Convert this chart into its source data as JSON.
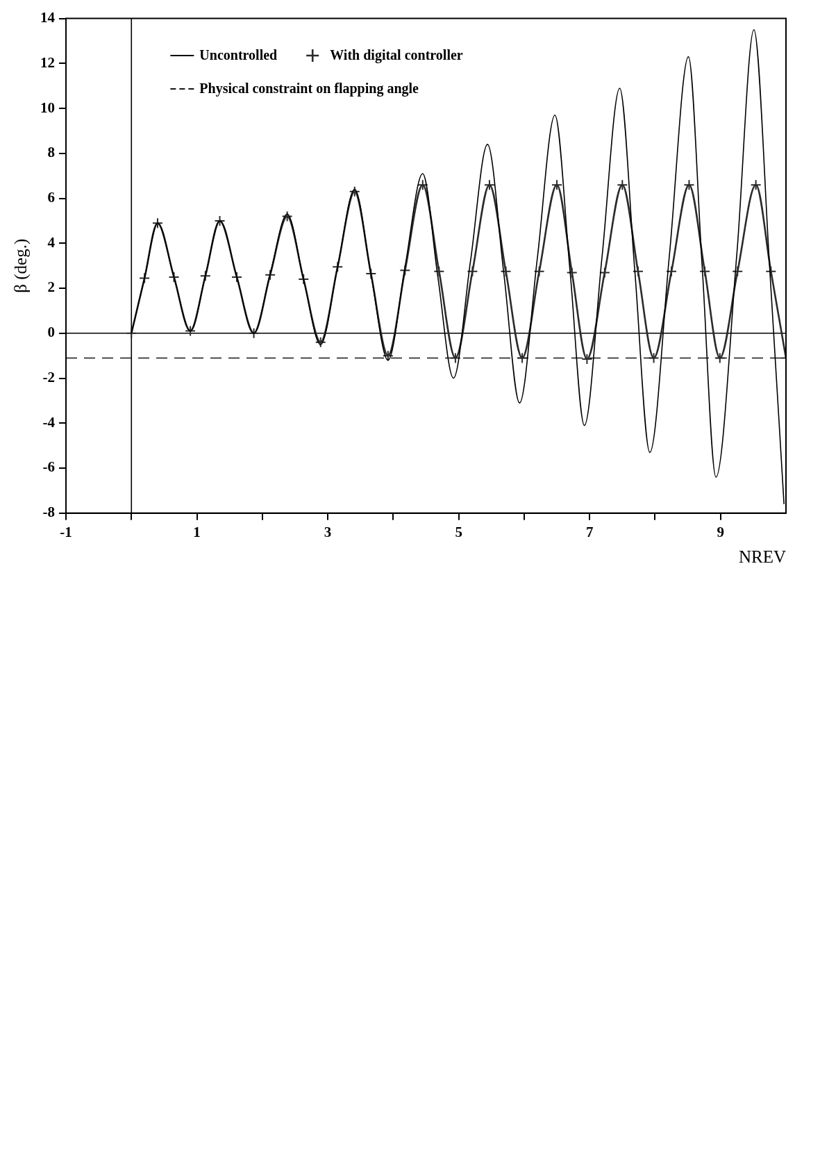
{
  "chart_data": {
    "type": "line",
    "xlabel": "NREV",
    "ylabel": "β (deg.)",
    "xlim": [
      -1,
      10
    ],
    "xticks": [
      -1,
      {
        "value": 0,
        "label": null
      },
      1,
      {
        "value": 2,
        "label": null
      },
      3,
      {
        "value": 4,
        "label": null
      },
      5,
      {
        "value": 6,
        "label": null
      },
      7,
      {
        "value": 8,
        "label": null
      },
      9
    ],
    "ylim": [
      -8,
      14
    ],
    "yticks": [
      -8,
      -6,
      -4,
      -2,
      0,
      2,
      4,
      6,
      8,
      10,
      12,
      14
    ],
    "legend": "top left",
    "ref_lines": [
      {
        "axis": "x",
        "value": 0
      }
    ],
    "series": [
      {
        "name": "Uncontrolled",
        "color": "#000000",
        "marker": "none",
        "line_style": "solid",
        "x": [
          0,
          0.2,
          0.4,
          0.65,
          0.9,
          1.13,
          1.35,
          1.61,
          1.87,
          2.12,
          2.38,
          2.63,
          2.89,
          3.15,
          3.41,
          3.66,
          3.92,
          4.18,
          4.45,
          4.68,
          4.92,
          5.18,
          5.44,
          5.69,
          5.93,
          6.2,
          6.47,
          6.7,
          6.92,
          7.19,
          7.46,
          7.69,
          7.92,
          8.22,
          8.51,
          8.72,
          8.93,
          9.25,
          9.51,
          9.75,
          9.97
        ],
        "values": [
          0,
          2.45,
          4.9,
          2.5,
          0.1,
          2.55,
          5.0,
          2.5,
          0.0,
          2.65,
          5.3,
          2.4,
          -0.5,
          2.95,
          6.4,
          2.6,
          -1.2,
          2.95,
          7.1,
          2.55,
          -2.0,
          3.2,
          8.4,
          2.65,
          -3.1,
          3.3,
          9.7,
          2.8,
          -4.1,
          3.4,
          10.9,
          2.8,
          -5.3,
          3.5,
          12.3,
          2.95,
          -6.4,
          3.55,
          13.5,
          2.95,
          -7.6
        ]
      },
      {
        "name": "With digital controller",
        "color": "#2b2b2b",
        "marker": "cross",
        "line_style": "solid",
        "x": [
          0,
          0.2,
          0.4,
          0.65,
          0.9,
          1.13,
          1.35,
          1.61,
          1.87,
          2.12,
          2.38,
          2.63,
          2.89,
          3.15,
          3.41,
          3.66,
          3.92,
          4.18,
          4.45,
          4.7,
          4.95,
          5.21,
          5.47,
          5.72,
          5.97,
          6.23,
          6.5,
          6.73,
          6.96,
          7.23,
          7.5,
          7.74,
          7.98,
          8.25,
          8.52,
          8.76,
          8.99,
          9.26,
          9.54,
          9.77,
          10
        ],
        "values": [
          0,
          2.45,
          4.9,
          2.5,
          0.1,
          2.55,
          5.0,
          2.5,
          0.0,
          2.6,
          5.2,
          2.4,
          -0.4,
          2.95,
          6.3,
          2.65,
          -1.0,
          2.8,
          6.6,
          2.75,
          -1.1,
          2.75,
          6.6,
          2.75,
          -1.1,
          2.75,
          6.6,
          2.7,
          -1.15,
          2.7,
          6.6,
          2.75,
          -1.1,
          2.75,
          6.6,
          2.75,
          -1.1,
          2.75,
          6.6,
          2.75,
          -1.1
        ]
      },
      {
        "name": "Physical constraint on flapping angle",
        "color": "#151515",
        "marker": "none",
        "line_style": "dashed",
        "x": [
          -1,
          10
        ],
        "values": [
          -1.1,
          -1.1
        ]
      },
      {
        "color": "#000000",
        "marker": "none",
        "line_style": "solid",
        "x": [
          -1,
          10
        ],
        "values": [
          0,
          0
        ]
      }
    ]
  }
}
